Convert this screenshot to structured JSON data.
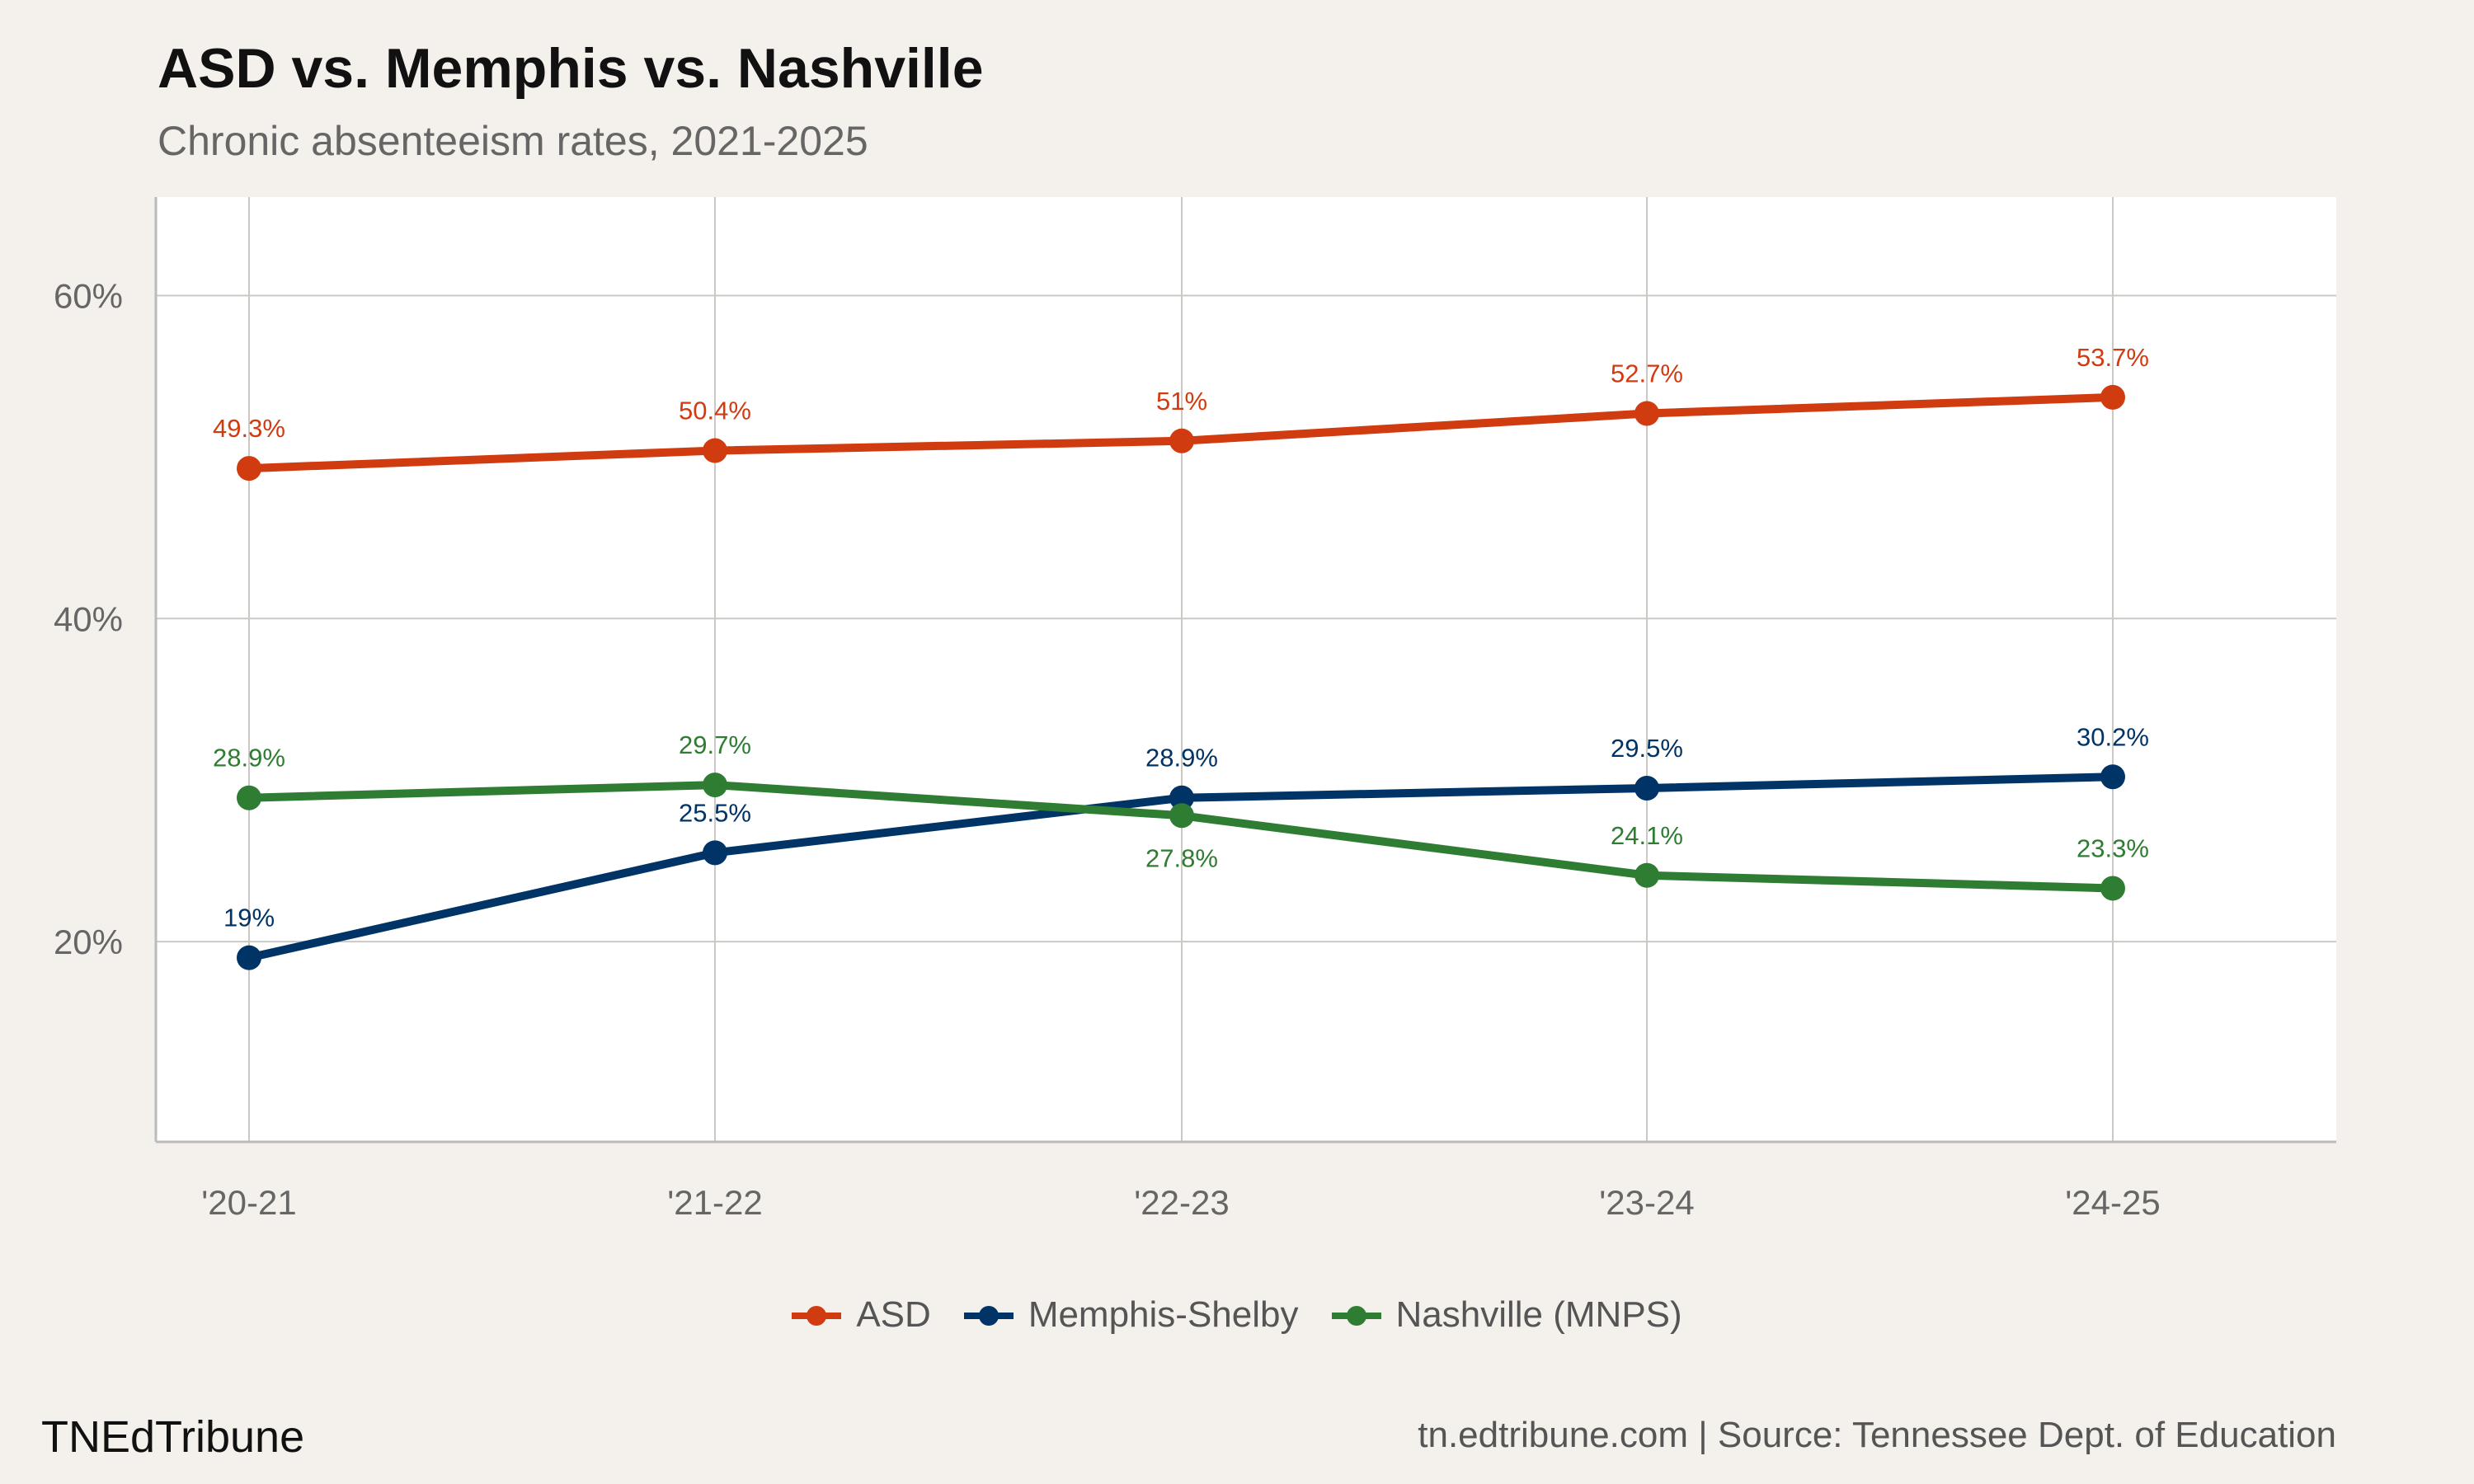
{
  "title": "ASD vs. Memphis vs. Nashville",
  "subtitle": "Chronic absenteeism rates, 2021-2025",
  "brand": "TNEdTribune",
  "source": "tn.edtribune.com | Source: Tennessee Dept. of Education",
  "chart_data": {
    "type": "line",
    "title": "ASD vs. Memphis vs. Nashville",
    "subtitle": "Chronic absenteeism rates, 2021-2025",
    "categories": [
      "'20-21",
      "'21-22",
      "'22-23",
      "'23-24",
      "'24-25"
    ],
    "y_ticks": [
      20,
      40,
      60
    ],
    "y_tick_labels": [
      "20%",
      "40%",
      "60%"
    ],
    "ylim": [
      7.6,
      66.1
    ],
    "grid": true,
    "legend_position": "bottom",
    "series": [
      {
        "name": "ASD",
        "color": "#d13b10",
        "values": [
          49.3,
          50.4,
          51,
          52.7,
          53.7
        ],
        "labels": [
          "49.3%",
          "50.4%",
          "51%",
          "52.7%",
          "53.7%"
        ]
      },
      {
        "name": "Memphis-Shelby",
        "color": "#003366",
        "values": [
          19,
          25.5,
          28.9,
          29.5,
          30.2
        ],
        "labels": [
          "19%",
          "25.5%",
          "28.9%",
          "29.5%",
          "30.2%"
        ]
      },
      {
        "name": "Nashville (MNPS)",
        "color": "#2e7d32",
        "values": [
          28.9,
          29.7,
          27.8,
          24.1,
          23.3
        ],
        "labels": [
          "28.9%",
          "29.7%",
          "27.8%",
          "24.1%",
          "23.3%"
        ]
      }
    ]
  }
}
